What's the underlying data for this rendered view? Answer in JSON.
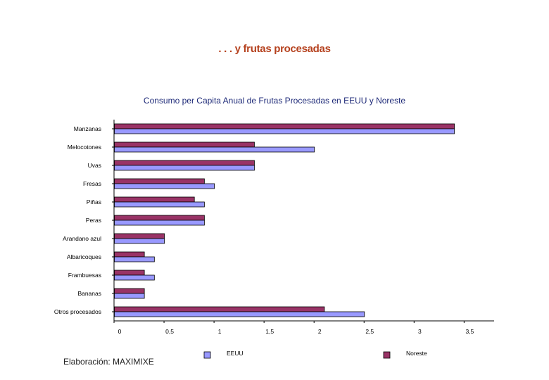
{
  "slide": {
    "title": ". . . y frutas procesadas",
    "footer": "Elaboración: MAXIMIXE"
  },
  "colors": {
    "eeuu": "#9999ff",
    "noreste": "#993366",
    "title": "#b5411e",
    "chart_title": "#1e2a78"
  },
  "chart_data": {
    "type": "bar",
    "orientation": "horizontal",
    "title": "Consumo per Capita Anual de Frutas Procesadas en EEUU y Noreste",
    "xlabel": "",
    "ylabel": "",
    "categories": [
      "Manzanas",
      "Melocotones",
      "Uvas",
      "Fresas",
      "Piñas",
      "Peras",
      "Arandano azul",
      "Albaricoques",
      "Frambuesas",
      "Bananas",
      "Otros procesados"
    ],
    "series": [
      {
        "name": "Noreste",
        "color": "#993366",
        "values": [
          3.4,
          1.4,
          1.4,
          0.9,
          0.8,
          0.9,
          0.5,
          0.3,
          0.3,
          0.3,
          2.1
        ]
      },
      {
        "name": "EEUU",
        "color": "#9999ff",
        "values": [
          3.4,
          2.0,
          1.4,
          1.0,
          0.9,
          0.9,
          0.5,
          0.4,
          0.4,
          0.3,
          2.5
        ]
      }
    ],
    "xlim": [
      0,
      3.8
    ],
    "ticks": [
      "0",
      "0,5",
      "1",
      "1,5",
      "2",
      "2,5",
      "3",
      "3,5"
    ],
    "tick_values": [
      0,
      0.5,
      1,
      1.5,
      2,
      2.5,
      3,
      3.5
    ],
    "legend": [
      {
        "name": "EEUU",
        "color": "#9999ff"
      },
      {
        "name": "Noreste",
        "color": "#993366"
      }
    ],
    "legend_position": "bottom",
    "grid": false
  }
}
